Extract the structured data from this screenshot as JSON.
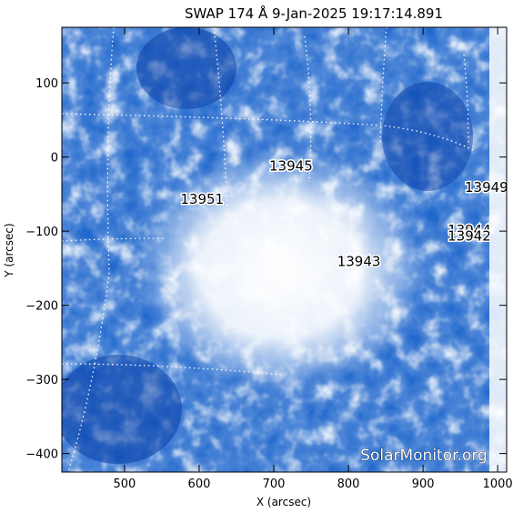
{
  "title": "SWAP 174 Å   9-Jan-2025 19:17:14.891",
  "x_axis": {
    "label": "X (arcsec)",
    "range": [
      416,
      1012
    ],
    "ticks": [
      500,
      600,
      700,
      800,
      900,
      1000
    ],
    "tick_labels": [
      "500",
      "600",
      "700",
      "800",
      "900",
      "1000"
    ]
  },
  "y_axis": {
    "label": "Y (arcsec)",
    "range": [
      -425,
      175
    ],
    "ticks": [
      100,
      0,
      -100,
      -200,
      -300,
      -400
    ],
    "tick_labels": [
      "100",
      "0",
      "−100",
      "−200",
      "−300",
      "−400"
    ]
  },
  "active_regions": [
    {
      "label": "13945",
      "x": 723,
      "y": -18
    },
    {
      "label": "13951",
      "x": 604,
      "y": -63
    },
    {
      "label": "13949",
      "x": 985,
      "y": -47
    },
    {
      "label": "13944",
      "x": 962,
      "y": -105
    },
    {
      "label": "13942",
      "x": 962,
      "y": -113
    },
    {
      "label": "13943",
      "x": 814,
      "y": -147
    }
  ],
  "watermark": "SolarMonitor.org",
  "colors": {
    "background": "#ffffff",
    "emission_bright": "#ffffff",
    "emission_mid": "#5b9ef0",
    "emission_dark": "#0a3fa8",
    "grid": "#ffffff"
  }
}
